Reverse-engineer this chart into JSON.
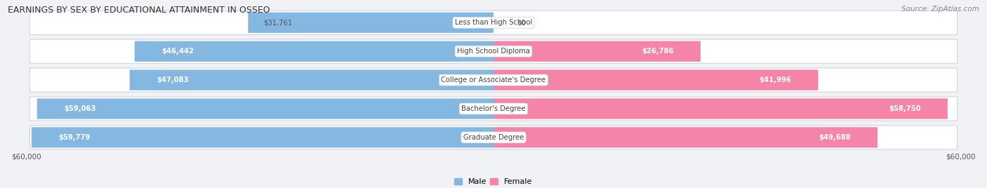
{
  "title": "EARNINGS BY SEX BY EDUCATIONAL ATTAINMENT IN OSSEO",
  "source": "Source: ZipAtlas.com",
  "categories": [
    "Less than High School",
    "High School Diploma",
    "College or Associate's Degree",
    "Bachelor's Degree",
    "Graduate Degree"
  ],
  "male_values": [
    31761,
    46442,
    47083,
    59063,
    59779
  ],
  "female_values": [
    0,
    26786,
    41996,
    58750,
    49688
  ],
  "male_labels": [
    "$31,761",
    "$46,442",
    "$47,083",
    "$59,063",
    "$59,779"
  ],
  "female_labels": [
    "$0",
    "$26,786",
    "$41,996",
    "$58,750",
    "$49,688"
  ],
  "male_color": "#85b8e0",
  "female_color": "#f585a8",
  "max_value": 60000,
  "x_label_left": "$60,000",
  "x_label_right": "$60,000",
  "background_color": "#f0f2f5",
  "row_bg_color": "#ffffff",
  "row_border_color": "#d0d4da",
  "title_color": "#333333",
  "source_color": "#888888",
  "label_dark_color": "#555555",
  "label_white_color": "#ffffff",
  "male_label_threshold": 40000,
  "female_label_threshold": 10000,
  "female_label_inside_threshold": 20000
}
